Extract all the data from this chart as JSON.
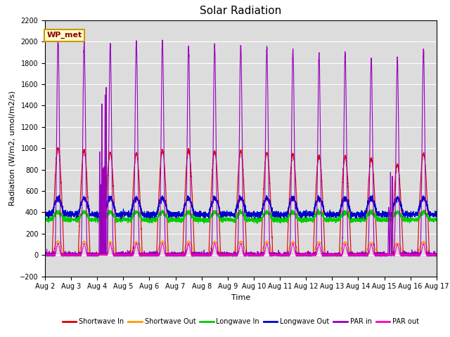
{
  "title": "Solar Radiation",
  "ylabel": "Radiation (W/m2, umol/m2/s)",
  "xlabel": "Time",
  "ylim": [
    -200,
    2200
  ],
  "yticks": [
    -200,
    0,
    200,
    400,
    600,
    800,
    1000,
    1200,
    1400,
    1600,
    1800,
    2000,
    2200
  ],
  "bg_color": "#dcdcdc",
  "legend_label": "WP_met",
  "series": {
    "shortwave_in": {
      "color": "#dd0000",
      "label": "Shortwave In"
    },
    "shortwave_out": {
      "color": "#ff9900",
      "label": "Shortwave Out"
    },
    "longwave_in": {
      "color": "#00cc00",
      "label": "Longwave In"
    },
    "longwave_out": {
      "color": "#0000cc",
      "label": "Longwave Out"
    },
    "par_in": {
      "color": "#9900bb",
      "label": "PAR in"
    },
    "par_out": {
      "color": "#ff00bb",
      "label": "PAR out"
    }
  },
  "num_days": 15,
  "points_per_day": 288,
  "start_day": 2
}
